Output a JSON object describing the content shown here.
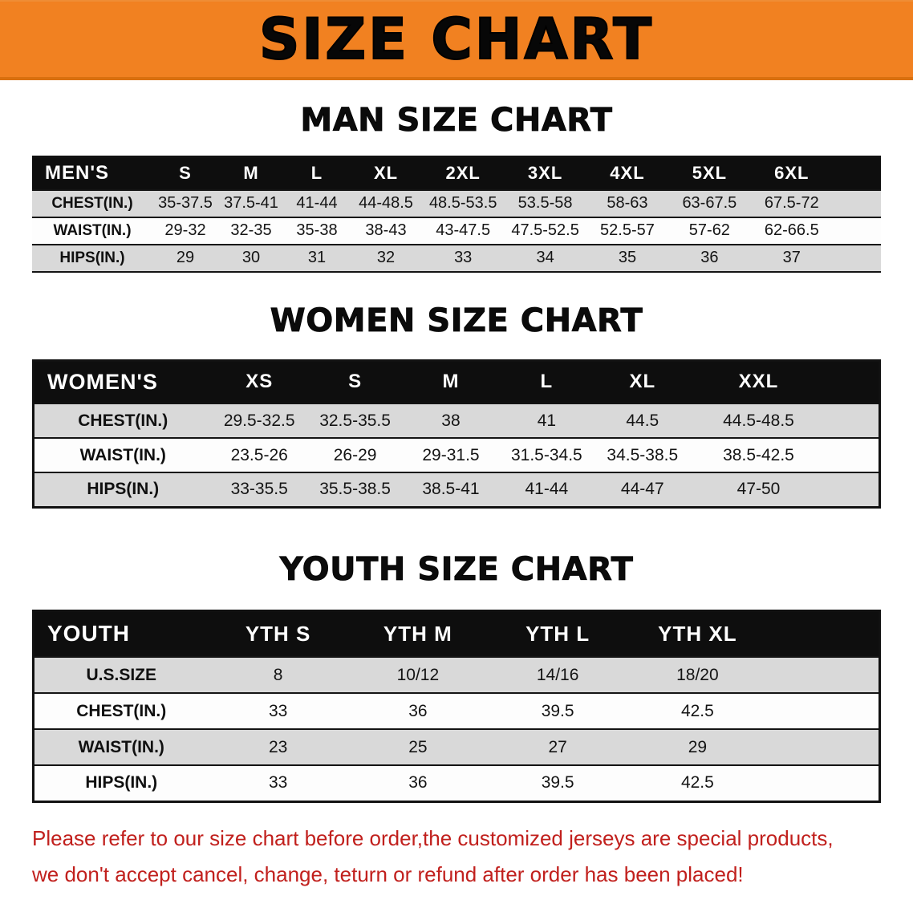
{
  "banner": {
    "title": "SIZE CHART"
  },
  "tables": {
    "men": {
      "heading": "MAN SIZE CHART",
      "header": [
        "MEN'S",
        "S",
        "M",
        "L",
        "XL",
        "2XL",
        "3XL",
        "4XL",
        "5XL",
        "6XL"
      ],
      "rows": [
        {
          "label": "CHEST(IN.)",
          "values": [
            "35-37.5",
            "37.5-41",
            "41-44",
            "44-48.5",
            "48.5-53.5",
            "53.5-58",
            "58-63",
            "63-67.5",
            "67.5-72"
          ]
        },
        {
          "label": "WAIST(IN.)",
          "values": [
            "29-32",
            "32-35",
            "35-38",
            "38-43",
            "43-47.5",
            "47.5-52.5",
            "52.5-57",
            "57-62",
            "62-66.5"
          ]
        },
        {
          "label": "HIPS(IN.)",
          "values": [
            "29",
            "30",
            "31",
            "32",
            "33",
            "34",
            "35",
            "36",
            "37"
          ]
        }
      ]
    },
    "women": {
      "heading": "WOMEN SIZE CHART",
      "header": [
        "WOMEN'S",
        "XS",
        "S",
        "M",
        "L",
        "XL",
        "XXL"
      ],
      "rows": [
        {
          "label": "CHEST(IN.)",
          "values": [
            "29.5-32.5",
            "32.5-35.5",
            "38",
            "41",
            "44.5",
            "44.5-48.5"
          ]
        },
        {
          "label": "WAIST(IN.)",
          "values": [
            "23.5-26",
            "26-29",
            "29-31.5",
            "31.5-34.5",
            "34.5-38.5",
            "38.5-42.5"
          ]
        },
        {
          "label": "HIPS(IN.)",
          "values": [
            "33-35.5",
            "35.5-38.5",
            "38.5-41",
            "41-44",
            "44-47",
            "47-50"
          ]
        }
      ]
    },
    "youth": {
      "heading": "YOUTH SIZE CHART",
      "header": [
        "YOUTH",
        "YTH S",
        "YTH M",
        "YTH L",
        "YTH XL"
      ],
      "rows": [
        {
          "label": "U.S.SIZE",
          "values": [
            "8",
            "10/12",
            "14/16",
            "18/20"
          ]
        },
        {
          "label": "CHEST(IN.)",
          "values": [
            "33",
            "36",
            "39.5",
            "42.5"
          ]
        },
        {
          "label": "WAIST(IN.)",
          "values": [
            "23",
            "25",
            "27",
            "29"
          ]
        },
        {
          "label": "HIPS(IN.)",
          "values": [
            "33",
            "36",
            "39.5",
            "42.5"
          ]
        }
      ]
    }
  },
  "footer": {
    "line1": "Please refer to our size chart before order,the customized jerseys are special products,",
    "line2": "we don't accept cancel, change, teturn or refund after order has been placed!"
  },
  "colors": {
    "banner_orange": "#F18121",
    "table_header_black": "#0E0E0E",
    "row_stripe_gray": "#D9D9D9",
    "footer_red": "#C1201D"
  }
}
